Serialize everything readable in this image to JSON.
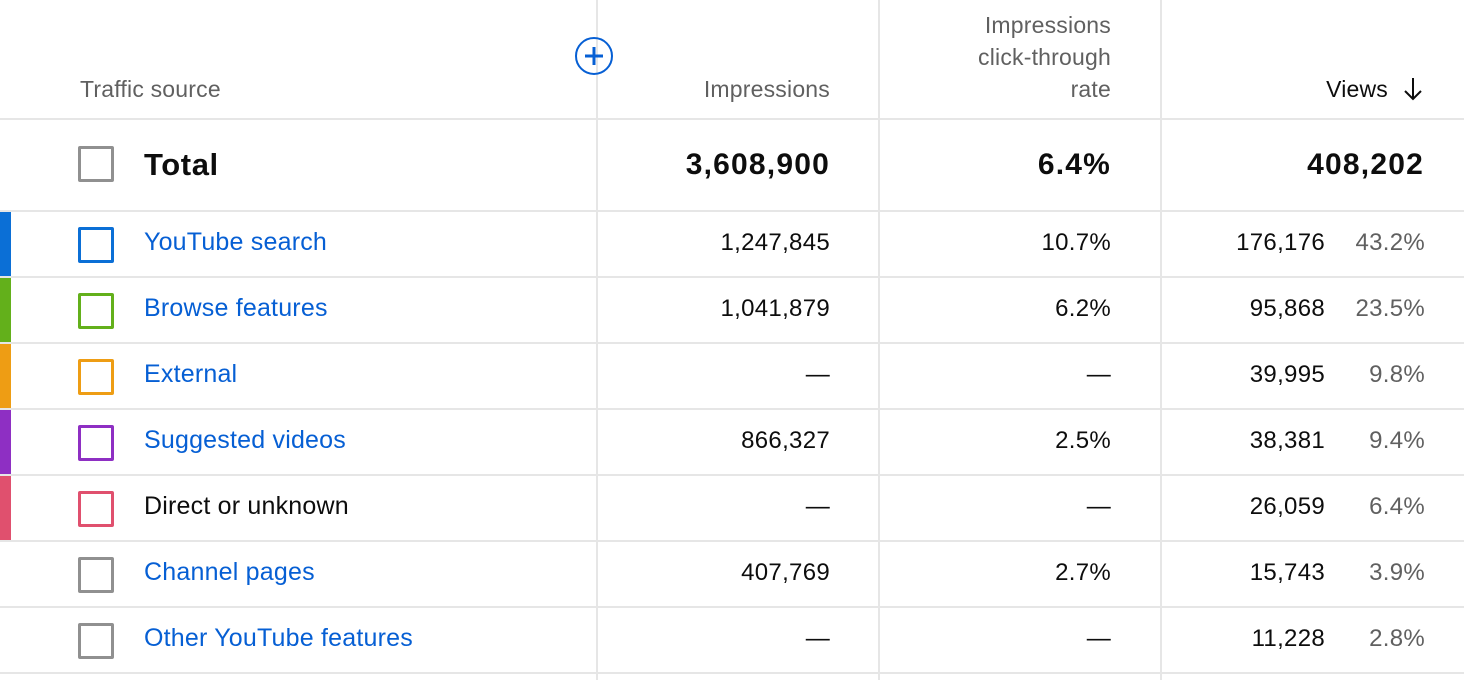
{
  "header": {
    "traffic_source": "Traffic source",
    "impressions": "Impressions",
    "ctr_line1": "Impressions",
    "ctr_line2": "click-through",
    "ctr_line3": "rate",
    "views": "Views",
    "add_metric_icon": "add-circle-icon",
    "sort_icon": "arrow-down-icon"
  },
  "total": {
    "label": "Total",
    "impressions": "3,608,900",
    "ctr": "6.4%",
    "views": "408,202"
  },
  "rows": [
    {
      "label": "YouTube search",
      "link": true,
      "color": "#0b6fd6",
      "impressions": "1,247,845",
      "ctr": "10.7%",
      "views": "176,176",
      "pct": "43.2%"
    },
    {
      "label": "Browse features",
      "link": true,
      "color": "#63b01b",
      "impressions": "1,041,879",
      "ctr": "6.2%",
      "views": "95,868",
      "pct": "23.5%"
    },
    {
      "label": "External",
      "link": true,
      "color": "#ee9d14",
      "impressions": "—",
      "ctr": "—",
      "views": "39,995",
      "pct": "9.8%"
    },
    {
      "label": "Suggested videos",
      "link": true,
      "color": "#8e2fc3",
      "impressions": "866,327",
      "ctr": "2.5%",
      "views": "38,381",
      "pct": "9.4%"
    },
    {
      "label": "Direct or unknown",
      "link": false,
      "color": "#e0506e",
      "impressions": "—",
      "ctr": "—",
      "views": "26,059",
      "pct": "6.4%"
    },
    {
      "label": "Channel pages",
      "link": true,
      "color": "",
      "impressions": "407,769",
      "ctr": "2.7%",
      "views": "15,743",
      "pct": "3.9%"
    },
    {
      "label": "Other YouTube features",
      "link": true,
      "color": "",
      "impressions": "—",
      "ctr": "—",
      "views": "11,228",
      "pct": "2.8%"
    }
  ],
  "colors": {
    "link": "#065fd4",
    "divider": "#e6e6e6",
    "checkbox_gray": "#909090"
  }
}
